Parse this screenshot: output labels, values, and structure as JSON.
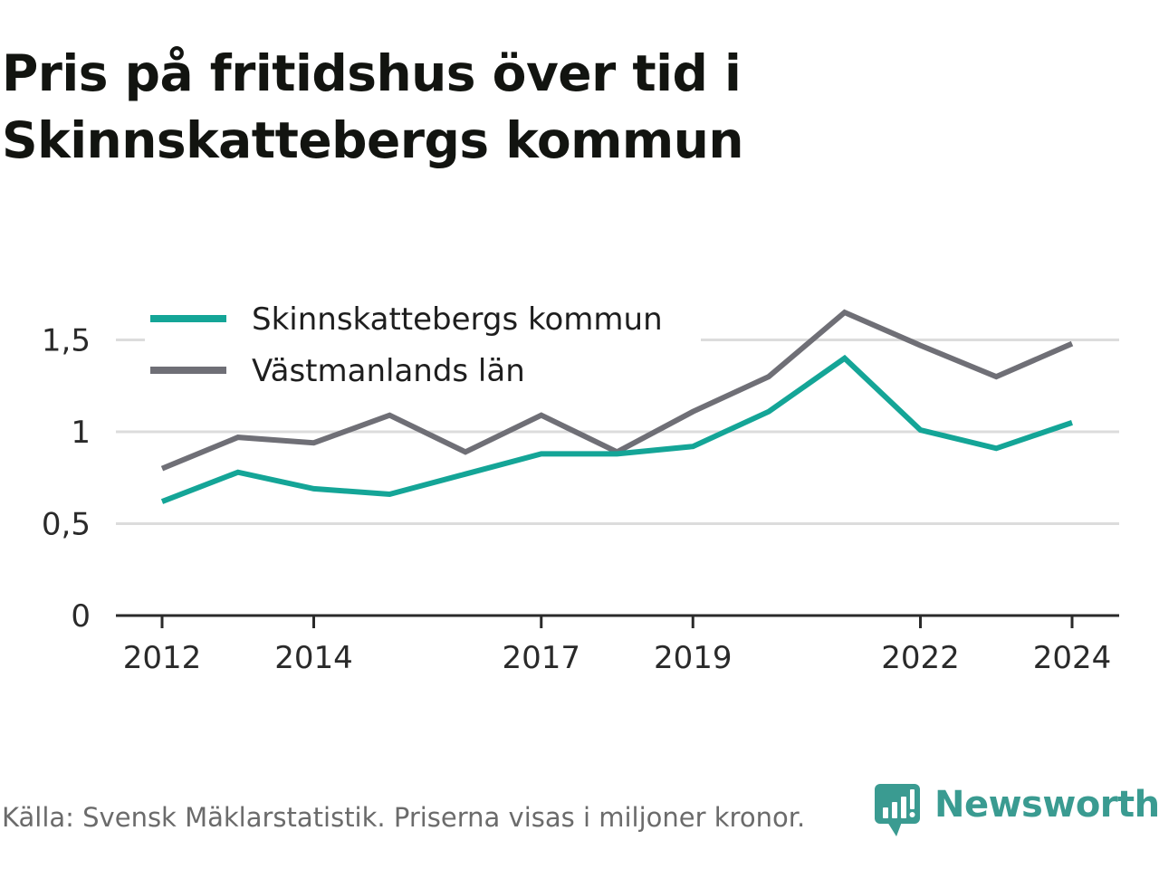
{
  "title": {
    "line1": "Pris på fritidshus över tid i",
    "line2": "Skinnskattebergs kommun"
  },
  "footer": {
    "source": "Källa: Svensk Mäklarstatistik. Priserna visas i miljoner kronor."
  },
  "brand": {
    "name": "Newsworthy",
    "icon": "newsworthy-logo-icon",
    "color": "#3a9b91"
  },
  "chart_data": {
    "type": "line",
    "x": [
      2012,
      2013,
      2014,
      2015,
      2016,
      2017,
      2018,
      2019,
      2020,
      2021,
      2022,
      2023,
      2024
    ],
    "x_ticks": [
      2012,
      2014,
      2017,
      2019,
      2022,
      2024
    ],
    "x_tick_labels": [
      "2012",
      "2014",
      "2017",
      "2019",
      "2022",
      "2024"
    ],
    "y_ticks": [
      0,
      0.5,
      1,
      1.5
    ],
    "y_tick_labels": [
      "0",
      "0,5",
      "1",
      "1,5"
    ],
    "ylim": [
      0,
      1.65
    ],
    "grid": true,
    "legend_position": "top-left",
    "series": [
      {
        "name": "Skinnskattebergs kommun",
        "color": "#14a597",
        "values": [
          0.62,
          0.78,
          0.69,
          0.66,
          0.77,
          0.88,
          0.88,
          0.92,
          1.11,
          1.4,
          1.01,
          0.91,
          1.05
        ]
      },
      {
        "name": "Västmanlands län",
        "color": "#6f6f76",
        "values": [
          0.8,
          0.97,
          0.94,
          1.09,
          0.89,
          1.09,
          0.89,
          1.11,
          1.3,
          1.65,
          1.47,
          1.3,
          1.48
        ]
      }
    ]
  }
}
